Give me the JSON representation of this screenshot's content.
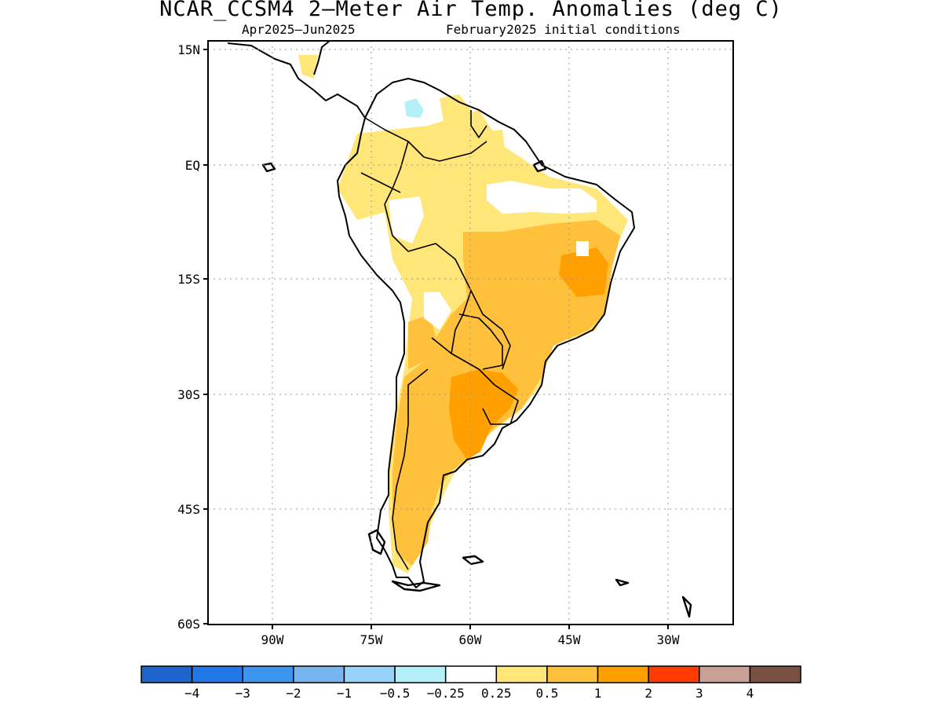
{
  "title": "NCAR_CCSM4 2—Meter Air Temp. Anomalies (deg C)",
  "subtitle_period": "Apr2025—Jun2025",
  "subtitle_init": "February2025 initial conditions",
  "map": {
    "lat_ticks": [
      "15N",
      "EQ",
      "15S",
      "30S",
      "45S",
      "60S"
    ],
    "lon_ticks": [
      "90W",
      "75W",
      "60W",
      "45W",
      "30W"
    ],
    "lon_range": [
      "-96",
      "-16"
    ],
    "lat_range": [
      "-60",
      "15"
    ],
    "grid": "dotted"
  },
  "colorbar": {
    "labels": [
      "−4",
      "−3",
      "−2",
      "−1",
      "−0.5",
      "−0.25",
      "0.25",
      "0.5",
      "1",
      "2",
      "3",
      "4"
    ],
    "colors": [
      "#1e64cc",
      "#2278e6",
      "#3c96f0",
      "#78b4f0",
      "#96d2fa",
      "#b4f0fa",
      "#ffffff",
      "#ffe678",
      "#ffc03c",
      "#ffa000",
      "#ff3c00",
      "#c8a096",
      "#7a5042"
    ]
  },
  "anomaly_colors": {
    "weak_warm": "#ffe678",
    "moderate_warm": "#ffc03c",
    "strong_warm": "#ffa000",
    "weak_cool": "#b4f0fa"
  }
}
